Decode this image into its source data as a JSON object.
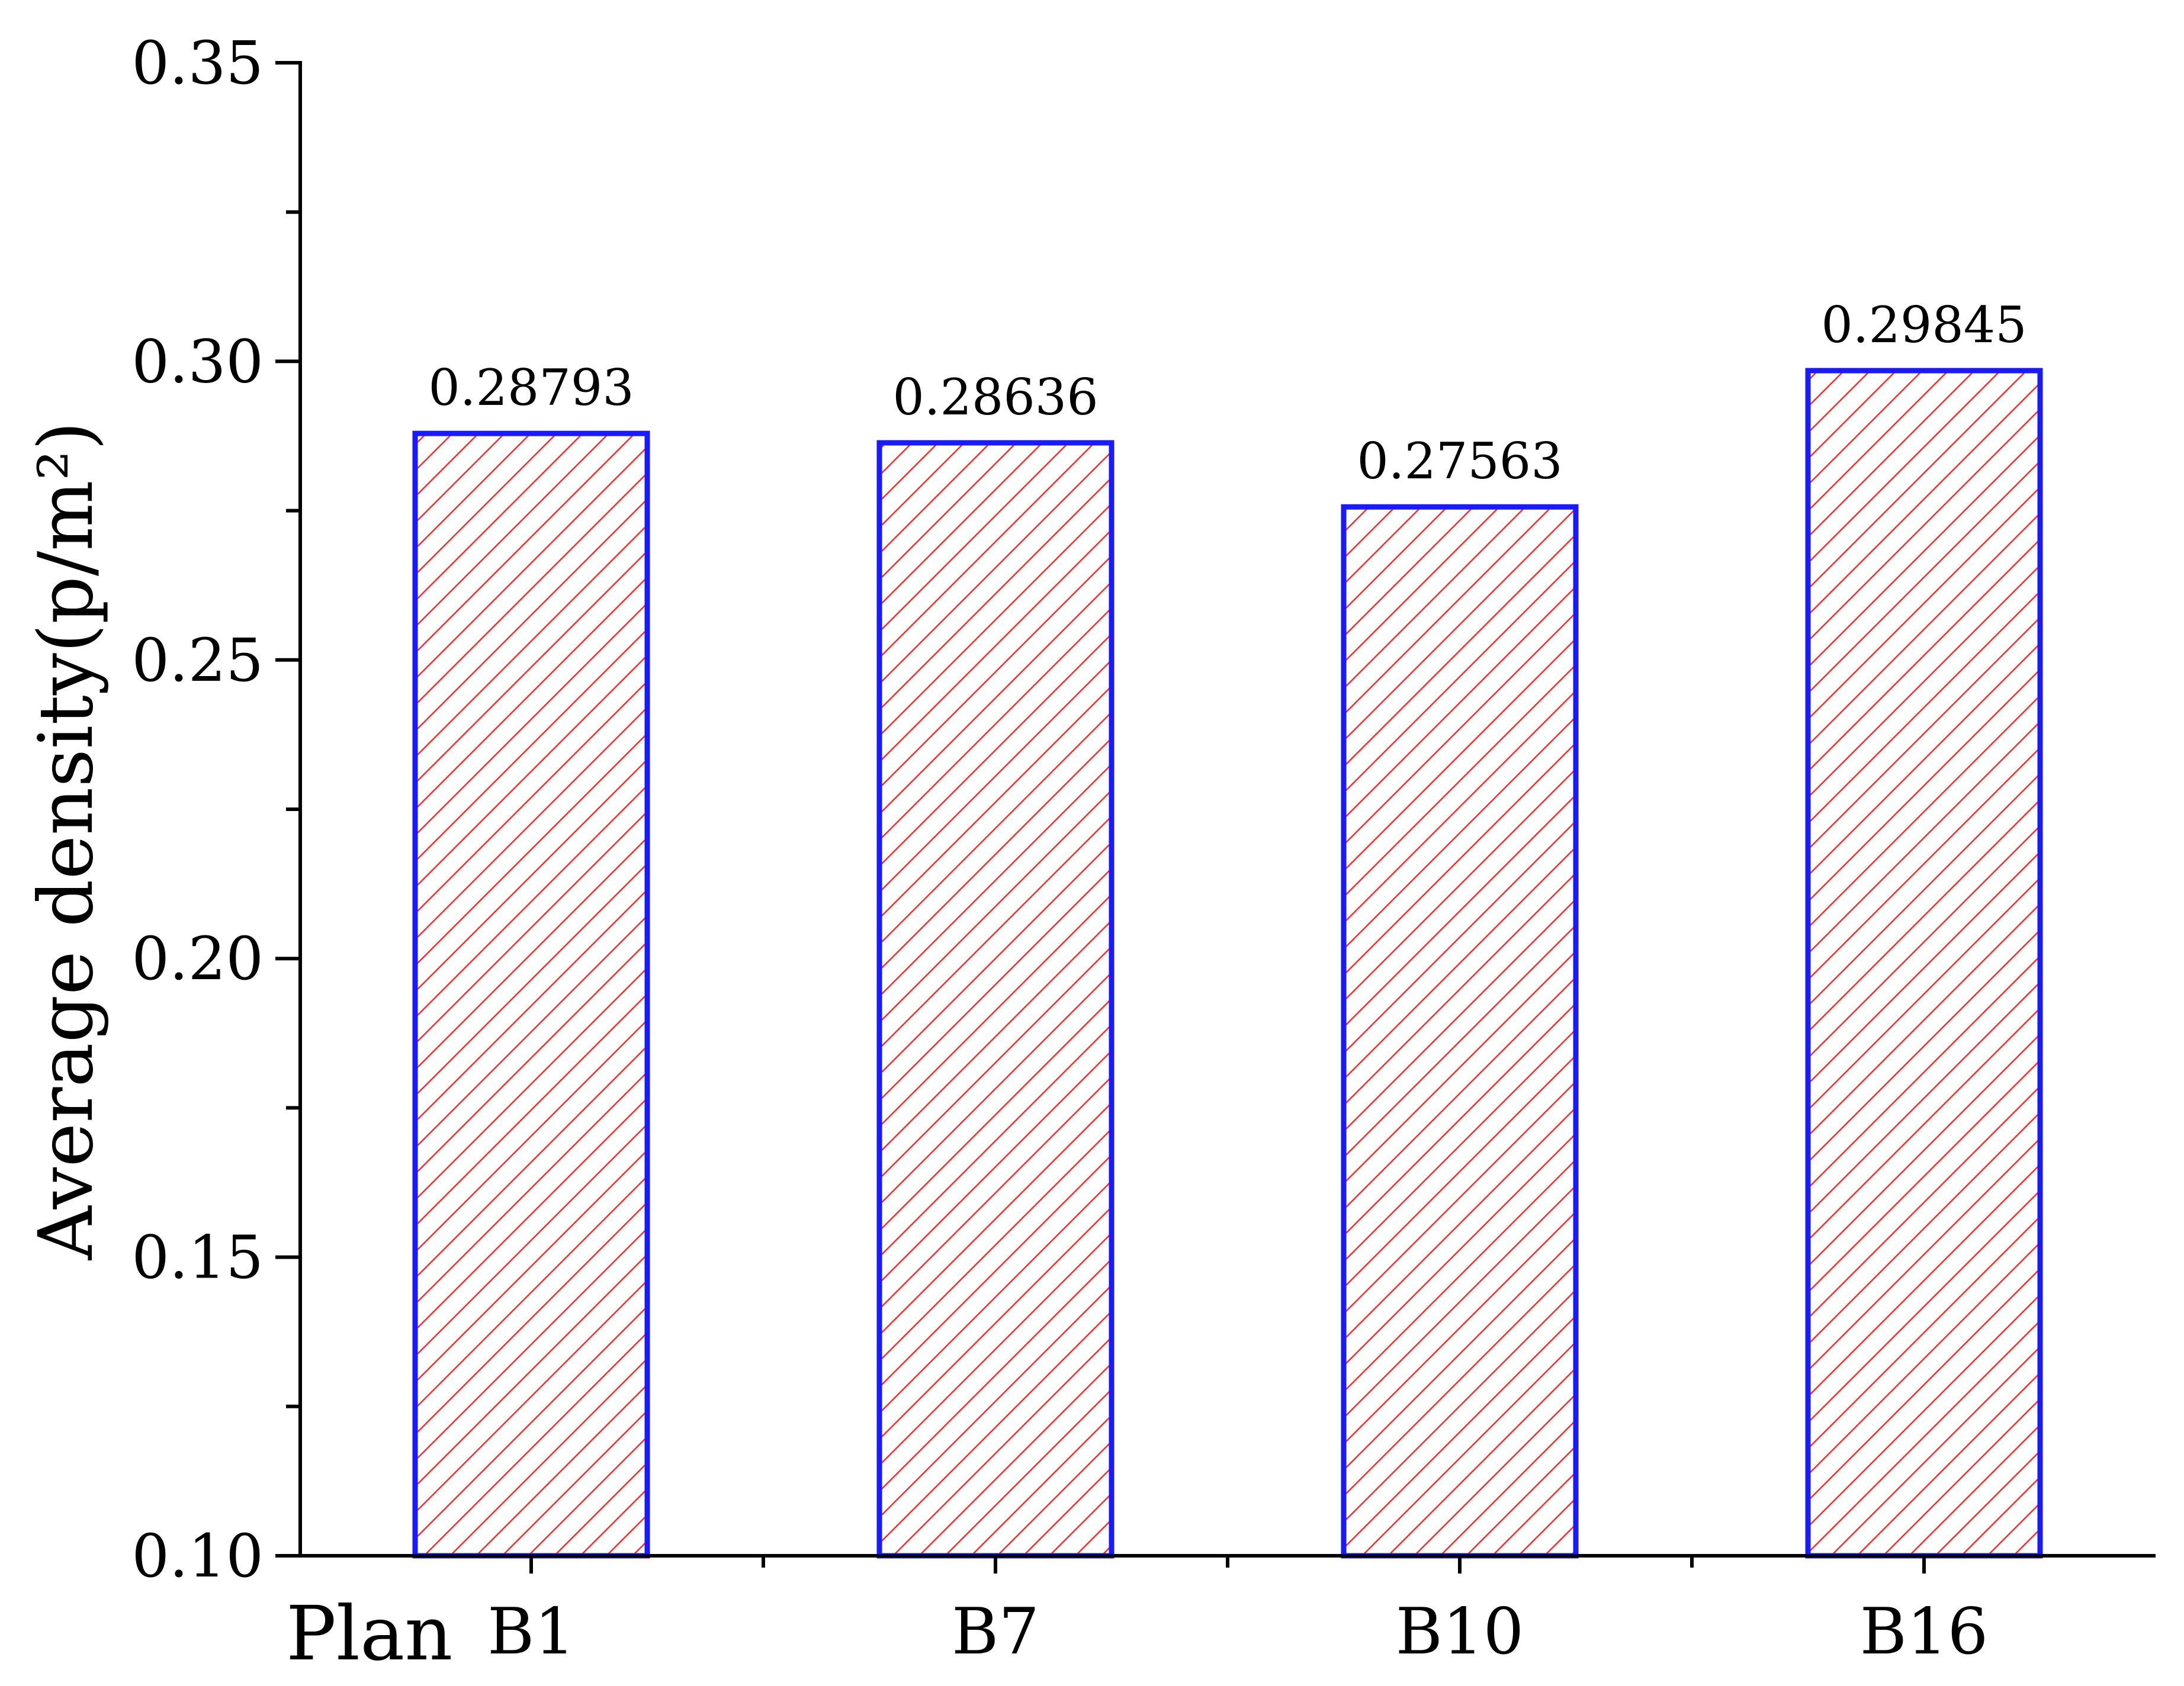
{
  "chart_data": {
    "type": "bar",
    "categories": [
      "B1",
      "B7",
      "B10",
      "B16"
    ],
    "values": [
      0.28793,
      0.28636,
      0.27563,
      0.29845
    ],
    "data_labels": [
      "0.28793",
      "0.28636",
      "0.27563",
      "0.29845"
    ],
    "xlabel": "Plan",
    "ylabel": "Average density(p/m²)",
    "ylim": [
      0.1,
      0.35
    ],
    "yticks": [
      "0.10",
      "0.15",
      "0.20",
      "0.25",
      "0.30",
      "0.35"
    ],
    "grid": false,
    "legend": "none",
    "bar_fill": "hatched",
    "colors": {
      "bar_border": "#1a1aff",
      "hatch": "#ff2a2a",
      "axis": "#000000",
      "text": "#000000"
    }
  }
}
